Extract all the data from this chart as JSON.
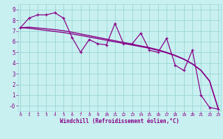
{
  "xlabel": "Windchill (Refroidissement éolien,°C)",
  "bg_color": "#c8f0f0",
  "grid_color": "#a0d8d8",
  "line_color": "#880088",
  "x_data": [
    0,
    1,
    2,
    3,
    4,
    5,
    6,
    7,
    8,
    9,
    10,
    11,
    12,
    13,
    14,
    15,
    16,
    17,
    18,
    19,
    20,
    21,
    22,
    23
  ],
  "y_jagged": [
    7.3,
    8.2,
    8.5,
    8.5,
    8.7,
    8.2,
    6.4,
    5.0,
    6.2,
    5.8,
    5.7,
    7.7,
    5.8,
    5.8,
    6.8,
    5.2,
    5.0,
    6.3,
    3.8,
    3.3,
    5.2,
    1.0,
    -0.15,
    -0.3
  ],
  "y_trend1": [
    7.3,
    7.25,
    7.15,
    7.05,
    6.95,
    6.85,
    6.72,
    6.58,
    6.43,
    6.28,
    6.13,
    5.98,
    5.83,
    5.68,
    5.53,
    5.38,
    5.18,
    4.95,
    4.68,
    4.35,
    3.9,
    3.3,
    2.3,
    -0.25
  ],
  "y_trend2": [
    7.3,
    7.35,
    7.28,
    7.2,
    7.12,
    7.02,
    6.88,
    6.72,
    6.56,
    6.4,
    6.24,
    6.08,
    5.92,
    5.76,
    5.6,
    5.44,
    5.24,
    5.0,
    4.72,
    4.38,
    3.93,
    3.33,
    2.33,
    -0.25
  ],
  "xlim": [
    0,
    23
  ],
  "ylim": [
    -0.5,
    9.5
  ],
  "yticks": [
    0,
    1,
    2,
    3,
    4,
    5,
    6,
    7,
    8,
    9
  ],
  "ytick_labels": [
    "-0",
    "1",
    "2",
    "3",
    "4",
    "5",
    "6",
    "7",
    "8",
    "9"
  ],
  "xticks": [
    0,
    1,
    2,
    3,
    4,
    5,
    6,
    7,
    8,
    9,
    10,
    11,
    12,
    13,
    14,
    15,
    16,
    17,
    18,
    19,
    20,
    21,
    22,
    23
  ]
}
